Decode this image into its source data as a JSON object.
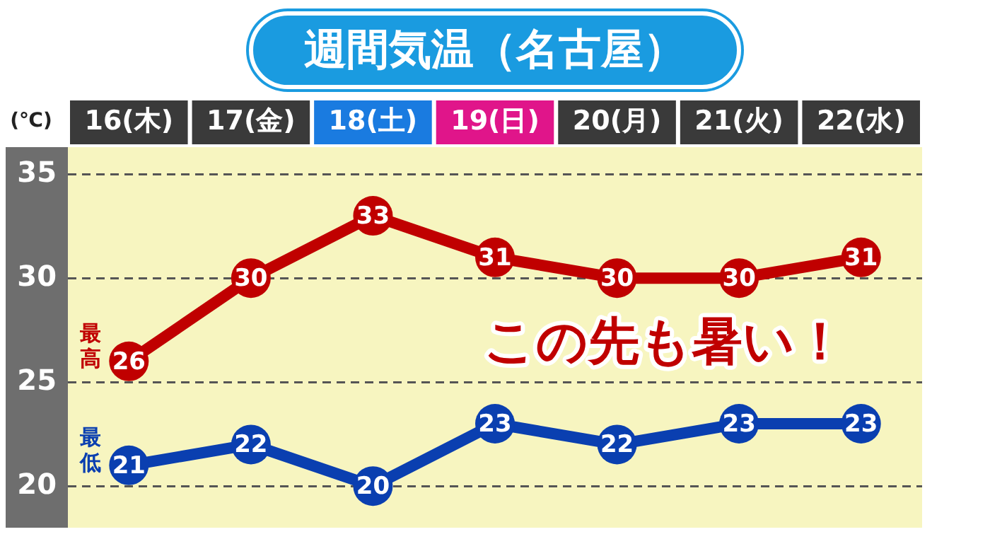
{
  "chart_data": {
    "type": "line",
    "title": "週間気温（名古屋）",
    "ylabel": "(℃)",
    "categories": [
      "16(木)",
      "17(金)",
      "18(土)",
      "19(日)",
      "20(月)",
      "21(火)",
      "22(水)"
    ],
    "series": [
      {
        "name": "最高",
        "color": "#c00000",
        "values": [
          26,
          30,
          33,
          31,
          30,
          30,
          31
        ]
      },
      {
        "name": "最低",
        "color": "#0a3fb0",
        "values": [
          21,
          22,
          20,
          23,
          22,
          23,
          23
        ]
      }
    ],
    "ylim": [
      18,
      36.3
    ],
    "yticks": [
      20,
      25,
      30,
      35
    ],
    "grid": "y",
    "legend": false,
    "marker": "circle",
    "line_style": "solid",
    "data_labels": true,
    "annotations": [
      "この先も暑い！"
    ]
  }
}
